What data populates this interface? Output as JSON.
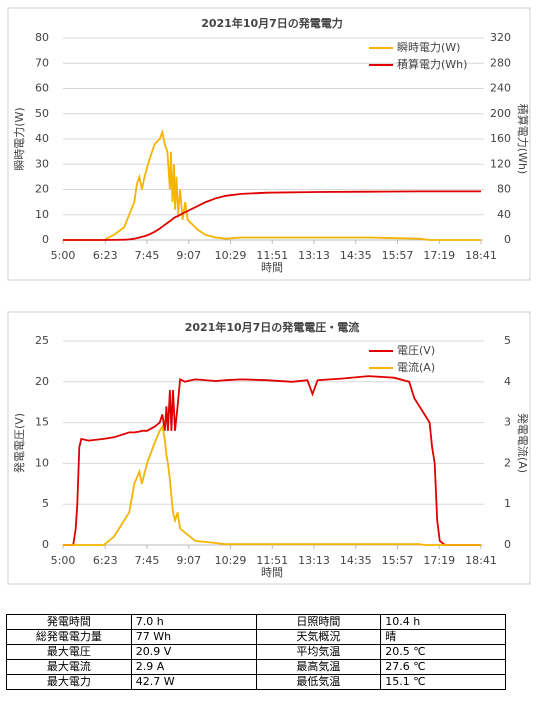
{
  "chart_data": [
    {
      "type": "line",
      "title": "2021年10月7日の発電電力",
      "xlabel": "時間",
      "ylabel": "瞬時電力(W)",
      "y2label": "積算電力(Wh)",
      "x": [
        300,
        380,
        400,
        420,
        430,
        440,
        445,
        450,
        455,
        460,
        470,
        480,
        490,
        495,
        500,
        505,
        510,
        512,
        515,
        518,
        520,
        523,
        526,
        530,
        535,
        540,
        545,
        555,
        565,
        580,
        600,
        620,
        650,
        700,
        800,
        900,
        1000,
        1020,
        1121
      ],
      "xlim": [
        300,
        1121
      ],
      "xticks": [
        {
          "value": 300,
          "label": "5:00"
        },
        {
          "value": 383,
          "label": "6:23"
        },
        {
          "value": 465,
          "label": "7:45"
        },
        {
          "value": 547,
          "label": "9:07"
        },
        {
          "value": 629,
          "label": "10:29"
        },
        {
          "value": 711,
          "label": "11:51"
        },
        {
          "value": 793,
          "label": "13:13"
        },
        {
          "value": 875,
          "label": "14:35"
        },
        {
          "value": 957,
          "label": "15:57"
        },
        {
          "value": 1039,
          "label": "17:19"
        },
        {
          "value": 1121,
          "label": "18:41"
        }
      ],
      "ylim": [
        0,
        80
      ],
      "yticks": [
        0,
        10,
        20,
        30,
        40,
        50,
        60,
        70,
        80
      ],
      "y2lim": [
        0,
        320
      ],
      "y2ticks": [
        0,
        40,
        80,
        120,
        160,
        200,
        240,
        280,
        320
      ],
      "grid": true,
      "legend": "top-right",
      "series": [
        {
          "name": "瞬時電力(W)",
          "color": "#f5b400",
          "values": [
            0,
            0,
            2,
            5,
            10,
            15,
            22,
            25,
            20,
            25,
            32,
            38,
            40,
            42.7,
            38,
            35,
            20,
            35,
            15,
            30,
            12,
            25,
            10,
            20,
            8,
            15,
            8,
            6,
            4,
            2,
            1,
            0.5,
            1,
            1,
            1,
            1,
            0.5,
            0,
            0
          ]
        },
        {
          "name": "積算電力(Wh)",
          "color": "#e00000",
          "axis": "y2",
          "values": [
            0,
            0,
            0.1,
            0.5,
            1,
            2,
            3,
            4,
            5,
            6,
            9,
            13,
            18,
            21,
            24,
            27,
            30,
            31,
            33,
            35,
            36,
            37,
            38,
            40,
            42,
            44,
            46,
            50,
            54,
            60,
            66,
            70,
            73,
            75,
            76,
            76.5,
            77,
            77,
            77
          ]
        }
      ]
    },
    {
      "type": "line",
      "title": "2021年10月7日の発電電圧・電流",
      "xlabel": "時間",
      "ylabel": "発電電圧(V)",
      "y2label": "発電電流(A)",
      "x": [
        300,
        320,
        325,
        328,
        332,
        336,
        350,
        380,
        400,
        430,
        440,
        450,
        455,
        465,
        480,
        490,
        495,
        500,
        503,
        506,
        510,
        513,
        516,
        520,
        525,
        530,
        540,
        545,
        560,
        600,
        620,
        650,
        700,
        750,
        780,
        790,
        800,
        850,
        900,
        950,
        980,
        990,
        1000,
        1010,
        1020,
        1025,
        1030,
        1035,
        1040,
        1050,
        1121
      ],
      "xlim": [
        300,
        1121
      ],
      "xticks": [
        {
          "value": 300,
          "label": "5:00"
        },
        {
          "value": 383,
          "label": "6:23"
        },
        {
          "value": 465,
          "label": "7:45"
        },
        {
          "value": 547,
          "label": "9:07"
        },
        {
          "value": 629,
          "label": "10:29"
        },
        {
          "value": 711,
          "label": "11:51"
        },
        {
          "value": 793,
          "label": "13:13"
        },
        {
          "value": 875,
          "label": "14:35"
        },
        {
          "value": 957,
          "label": "15:57"
        },
        {
          "value": 1039,
          "label": "17:19"
        },
        {
          "value": 1121,
          "label": "18:41"
        }
      ],
      "ylim": [
        0,
        25
      ],
      "yticks": [
        0,
        5,
        10,
        15,
        20,
        25
      ],
      "y2lim": [
        0,
        5
      ],
      "y2ticks": [
        0,
        1,
        2,
        3,
        4,
        5
      ],
      "grid": true,
      "legend": "top-right",
      "series": [
        {
          "name": "電圧(V)",
          "color": "#e00000",
          "values": [
            0,
            0,
            2,
            5,
            12,
            13,
            12.8,
            13,
            13.2,
            13.8,
            13.8,
            13.9,
            14,
            14,
            14.5,
            15,
            16,
            14,
            17,
            14,
            19,
            14,
            19,
            14,
            17,
            20.3,
            20,
            20.1,
            20.3,
            20.1,
            20.2,
            20.3,
            20.2,
            20,
            20.2,
            18.5,
            20.2,
            20.4,
            20.7,
            20.5,
            20,
            18,
            17,
            16,
            15,
            12,
            10,
            3,
            0.5,
            0,
            0
          ]
        },
        {
          "name": "電流(A)",
          "color": "#f5b400",
          "axis": "y2",
          "values": [
            0,
            0,
            0,
            0,
            0,
            0,
            0,
            0,
            0.2,
            0.8,
            1.5,
            1.8,
            1.5,
            2,
            2.5,
            2.8,
            2.9,
            2.6,
            2.2,
            2,
            1.6,
            1.2,
            0.8,
            0.6,
            0.8,
            0.4,
            0.3,
            0.25,
            0.1,
            0.05,
            0.02,
            0.02,
            0.02,
            0.02,
            0.02,
            0.02,
            0.02,
            0.02,
            0.02,
            0.02,
            0.02,
            0.02,
            0.02,
            0,
            0,
            0,
            0,
            0,
            0,
            0,
            0
          ]
        }
      ]
    }
  ],
  "table": {
    "rows": [
      [
        "発電時間",
        "7.0 h",
        "日照時間",
        "10.4 h"
      ],
      [
        "総発電電力量",
        "77 Wh",
        "天気概況",
        "晴"
      ],
      [
        "最大電圧",
        "20.9 V",
        "平均気温",
        "20.5 ℃"
      ],
      [
        "最大電流",
        "2.9 A",
        "最高気温",
        "27.6 ℃"
      ],
      [
        "最大電力",
        "42.7 W",
        "最低気温",
        "15.1 ℃"
      ]
    ]
  }
}
